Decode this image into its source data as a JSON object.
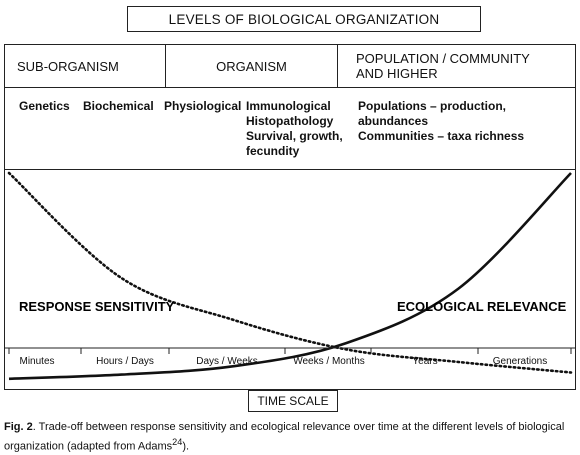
{
  "title": "LEVELS OF BIOLOGICAL ORGANIZATION",
  "columns": [
    {
      "label": "SUB-ORGANISM"
    },
    {
      "label": "ORGANISM"
    },
    {
      "label_line1": "POPULATION / COMMUNITY",
      "label_line2": "AND HIGHER"
    }
  ],
  "levels": {
    "genetics": "Genetics",
    "biochemical": "Biochemical",
    "physiological": "Physiological",
    "immunological": "Immunological",
    "histopathology": "Histopathology",
    "survival": "Survival, growth,",
    "fecundity": "fecundity",
    "populations": "Populations – production,",
    "abundances": "abundances",
    "communities": "Communities – taxa richness"
  },
  "chart_data": {
    "type": "line",
    "x_categories": [
      "Minutes",
      "Hours / Days",
      "Days / Weeks",
      "Weeks / Months",
      "Years",
      "Generations"
    ],
    "series": [
      {
        "name": "RESPONSE SENSITIVITY",
        "style": "dotted",
        "trend": "decreasing",
        "values": [
          1.0,
          0.5,
          0.3,
          0.16,
          0.1,
          0.05
        ]
      },
      {
        "name": "ECOLOGICAL RELEVANCE",
        "style": "solid",
        "trend": "increasing",
        "values": [
          0.02,
          0.04,
          0.08,
          0.19,
          0.45,
          1.0
        ]
      }
    ],
    "xlabel": "TIME SCALE",
    "ylabel": ""
  },
  "caption": {
    "prefix": "Fig. 2",
    "text": ". Trade-off between response sensitivity and ecological relevance over time at the different levels of biological organization (adapted from Adams",
    "superscript": "24",
    "suffix": ")."
  }
}
